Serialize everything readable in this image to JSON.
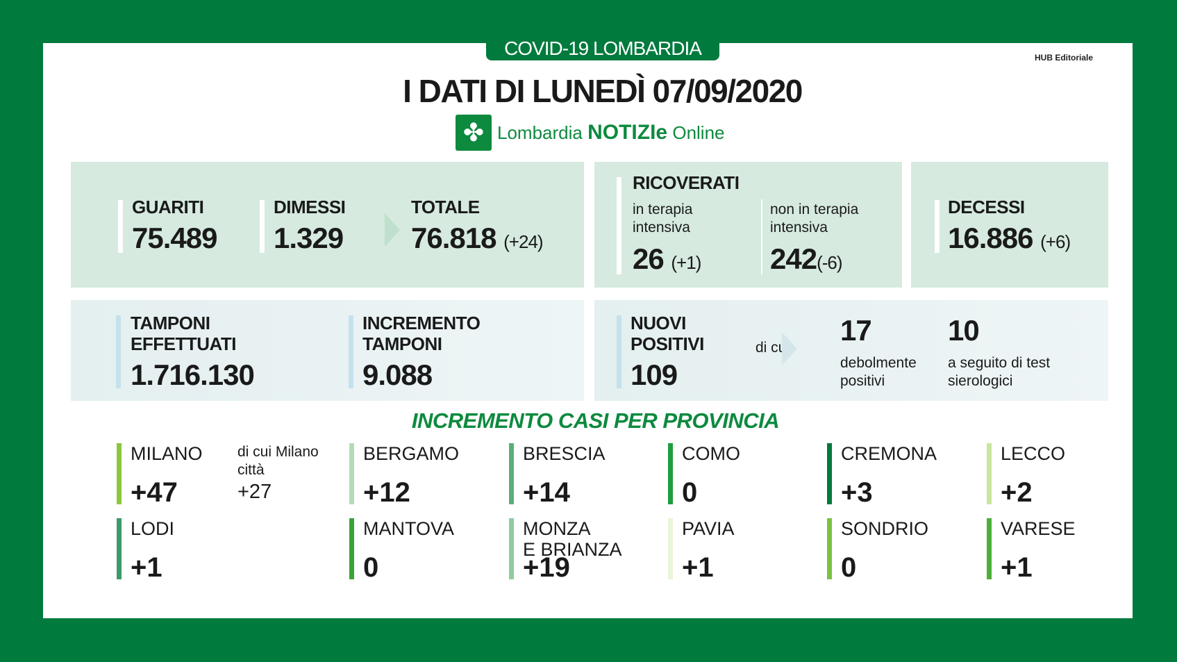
{
  "header": {
    "tab": "COVID-19 LOMBARDIA",
    "publisher": "HUB Editoriale",
    "title": "I DATI DI LUNEDÌ 07/09/2020",
    "logo": {
      "prefix": "Lombardia",
      "brand": "NOTIZIe",
      "suffix": "Online"
    }
  },
  "summary": {
    "guariti": {
      "label": "GUARITI",
      "value": "75.489"
    },
    "dimessi": {
      "label": "DIMESSI",
      "value": "1.329"
    },
    "totale": {
      "label": "TOTALE",
      "value": "76.818",
      "delta": "(+24)"
    },
    "ricoverati": {
      "label": "RICOVERATI",
      "ti_label": "in terapia intensiva",
      "ti_value": "26",
      "ti_delta": "(+1)",
      "nti_label": "non in terapia intensiva",
      "nti_value": "242",
      "nti_delta": "(-6)"
    },
    "decessi": {
      "label": "DECESSI",
      "value": "16.886",
      "delta": "(+6)"
    },
    "tamponi": {
      "label": "TAMPONI EFFETTUATI",
      "value": "1.716.130"
    },
    "incremento": {
      "label": "INCREMENTO TAMPONI",
      "value": "9.088"
    },
    "nuovi": {
      "label": "NUOVI POSITIVI",
      "value": "109",
      "dicui": "di cui",
      "deb_value": "17",
      "deb_label": "debolmente positivi",
      "sier_value": "10",
      "sier_label": "a seguito di test sierologici"
    }
  },
  "provinces": {
    "heading": "INCREMENTO CASI PER PROVINCIA",
    "milano_note": "di cui Milano città",
    "milano_city": "+27",
    "items": [
      {
        "name": "MILANO",
        "value": "+47",
        "color": "#8cc63f"
      },
      {
        "name": "BERGAMO",
        "value": "+12",
        "color": "#b5dcb8"
      },
      {
        "name": "BRESCIA",
        "value": "+14",
        "color": "#5aae7a"
      },
      {
        "name": "COMO",
        "value": "0",
        "color": "#1e9e3e"
      },
      {
        "name": "CREMONA",
        "value": "+3",
        "color": "#007a3d"
      },
      {
        "name": "LECCO",
        "value": "+2",
        "color": "#c8e6a0"
      },
      {
        "name": "LODI",
        "value": "+1",
        "color": "#3a9a6a"
      },
      {
        "name": "MANTOVA",
        "value": "0",
        "color": "#3aa33a"
      },
      {
        "name": "MONZA\nE BRIANZA",
        "value": "+19",
        "color": "#8ccca0"
      },
      {
        "name": "PAVIA",
        "value": "+1",
        "color": "#e8f5d8"
      },
      {
        "name": "SONDRIO",
        "value": "0",
        "color": "#7cc242"
      },
      {
        "name": "VARESE",
        "value": "+1",
        "color": "#4caf3a"
      }
    ]
  }
}
